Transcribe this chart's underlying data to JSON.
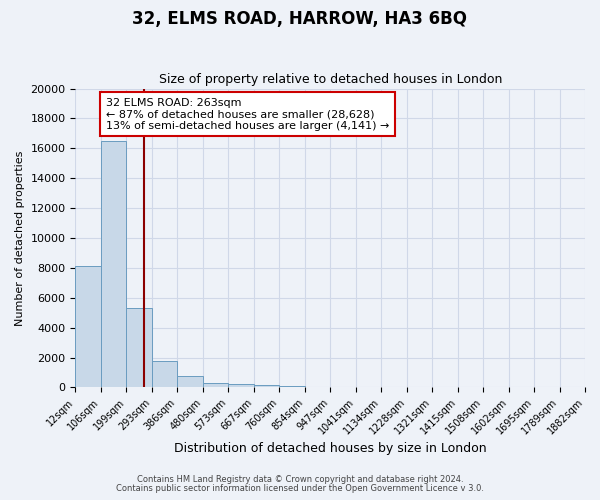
{
  "title": "32, ELMS ROAD, HARROW, HA3 6BQ",
  "subtitle": "Size of property relative to detached houses in London",
  "xlabel": "Distribution of detached houses by size in London",
  "ylabel": "Number of detached properties",
  "bin_labels": [
    "12sqm",
    "106sqm",
    "199sqm",
    "293sqm",
    "386sqm",
    "480sqm",
    "573sqm",
    "667sqm",
    "760sqm",
    "854sqm",
    "947sqm",
    "1041sqm",
    "1134sqm",
    "1228sqm",
    "1321sqm",
    "1415sqm",
    "1508sqm",
    "1602sqm",
    "1695sqm",
    "1789sqm",
    "1882sqm"
  ],
  "bar_values": [
    8100,
    16500,
    5300,
    1750,
    750,
    300,
    200,
    150,
    100,
    0,
    0,
    0,
    0,
    0,
    0,
    0,
    0,
    0,
    0,
    0
  ],
  "bar_color": "#c8d8e8",
  "bar_edge_color": "#6a9cc0",
  "vline_color": "#8b0000",
  "ylim": [
    0,
    20000
  ],
  "yticks": [
    0,
    2000,
    4000,
    6000,
    8000,
    10000,
    12000,
    14000,
    16000,
    18000,
    20000
  ],
  "annotation_title": "32 ELMS ROAD: 263sqm",
  "annotation_line1": "← 87% of detached houses are smaller (28,628)",
  "annotation_line2": "13% of semi-detached houses are larger (4,141) →",
  "grid_color": "#d0d8e8",
  "bg_color": "#eef2f8",
  "footer1": "Contains HM Land Registry data © Crown copyright and database right 2024.",
  "footer2": "Contains public sector information licensed under the Open Government Licence v 3.0."
}
